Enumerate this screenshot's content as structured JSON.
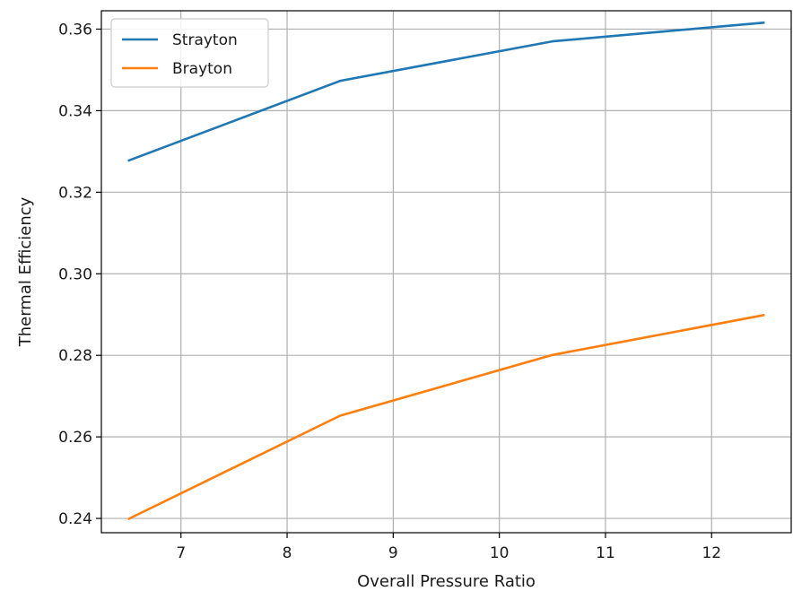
{
  "chart_data": {
    "type": "line",
    "title": "",
    "xlabel": "Overall Pressure Ratio",
    "ylabel": "Thermal Efficiency",
    "xlim": [
      6.25,
      12.75
    ],
    "ylim": [
      0.2365,
      0.3645
    ],
    "xticks": [
      7,
      8,
      9,
      10,
      11,
      12
    ],
    "yticks": [
      0.24,
      0.26,
      0.28,
      0.3,
      0.32,
      0.34,
      0.36
    ],
    "xtick_labels": [
      "7",
      "8",
      "9",
      "10",
      "11",
      "12"
    ],
    "ytick_labels": [
      "0.24",
      "0.26",
      "0.28",
      "0.30",
      "0.32",
      "0.34",
      "0.36"
    ],
    "grid": true,
    "legend_position": "top-left",
    "series": [
      {
        "name": "Strayton",
        "color": "#1f77b4",
        "x": [
          6.5,
          8.5,
          10.5,
          12.5
        ],
        "y": [
          0.3277,
          0.3473,
          0.357,
          0.3616
        ]
      },
      {
        "name": "Brayton",
        "color": "#ff7f0e",
        "x": [
          6.5,
          8.5,
          10.5,
          12.5
        ],
        "y": [
          0.2398,
          0.2652,
          0.2801,
          0.2899
        ]
      }
    ]
  }
}
